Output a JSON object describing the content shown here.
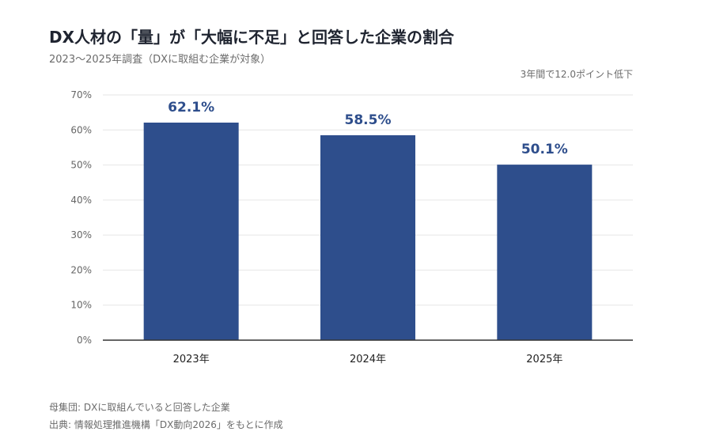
{
  "header": {
    "title": "DX人材の「量」が「大幅に不足」と回答した企業の割合",
    "subtitle": "2023〜2025年調査（DXに取組む企業が対象）"
  },
  "annotation": "3年間で12.0ポイント低下",
  "footnotes": {
    "population": "母集団: DXに取組んでいると回答した企業",
    "source": "出典: 情報処理推進機構「DX動向2026」をもとに作成"
  },
  "colors": {
    "bar": "#2e4e8c",
    "value_label": "#2e4e8c",
    "grid": "#e6e6e6",
    "axis": "#333333"
  },
  "chart_data": {
    "type": "bar",
    "categories": [
      "2023年",
      "2024年",
      "2025年"
    ],
    "values": [
      62.1,
      58.5,
      50.1
    ],
    "value_labels": [
      "62.1%",
      "58.5%",
      "50.1%"
    ],
    "yticks": [
      "0%",
      "10%",
      "20%",
      "30%",
      "40%",
      "50%",
      "60%",
      "70%"
    ],
    "ylim": [
      0,
      70
    ],
    "grid": true,
    "legend": "none"
  }
}
